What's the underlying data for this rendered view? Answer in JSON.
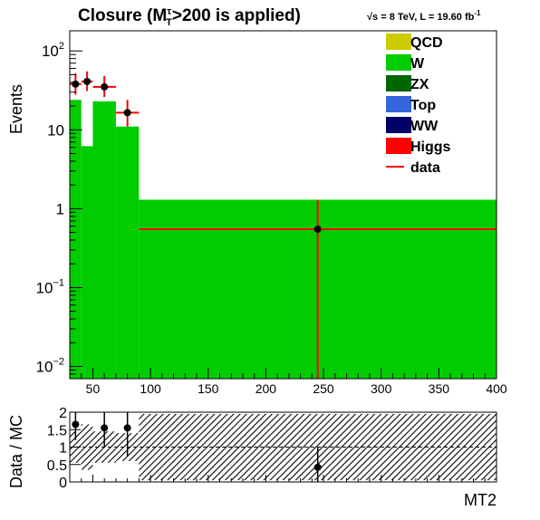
{
  "chart_data": {
    "type": "histogram",
    "title": {
      "prefix": "Closure (M",
      "sup": "τ",
      "sub": "T",
      "suffix": ">200 is applied)"
    },
    "energy_label": {
      "sqrt": "√s",
      "main": " = 8 TeV, L = 19.60 fb",
      "sup": "-1"
    },
    "ylabel": "Events",
    "xlabel": "MT2",
    "xlim": [
      30,
      400
    ],
    "ylim": [
      0.007,
      180
    ],
    "yscale": "log",
    "x_ticks": [
      "50",
      "100",
      "150",
      "200",
      "250",
      "300",
      "350",
      "400"
    ],
    "x_tick_values": [
      50,
      100,
      150,
      200,
      250,
      300,
      350,
      400
    ],
    "y_ticks": [
      {
        "value": 100,
        "base": "10",
        "exp": "2"
      },
      {
        "value": 10,
        "base": "10",
        "exp": ""
      },
      {
        "value": 1,
        "base": "1",
        "exp": ""
      },
      {
        "value": 0.1,
        "base": "10",
        "exp": "−1"
      },
      {
        "value": 0.01,
        "base": "10",
        "exp": "−2"
      }
    ],
    "bins": [
      {
        "x0": 30,
        "x1": 40
      },
      {
        "x0": 40,
        "x1": 50
      },
      {
        "x0": 50,
        "x1": 70
      },
      {
        "x0": 70,
        "x1": 90
      },
      {
        "x0": 90,
        "x1": 400
      }
    ],
    "stack": [
      {
        "name": "W",
        "color": "#00cc00",
        "values": [
          24,
          6.2,
          23,
          11,
          1.3
        ]
      }
    ],
    "data_points": [
      {
        "x": 35,
        "y": 38,
        "ylo": 28,
        "yhi": 52,
        "xlo": 30,
        "xhi": 40
      },
      {
        "x": 45,
        "y": 41,
        "ylo": 31,
        "yhi": 55,
        "xlo": 40,
        "xhi": 50
      },
      {
        "x": 60,
        "y": 35,
        "ylo": 26,
        "yhi": 48,
        "xlo": 50,
        "xhi": 70
      },
      {
        "x": 80,
        "y": 16.5,
        "ylo": 11,
        "yhi": 24,
        "xlo": 70,
        "xhi": 90
      },
      {
        "x": 245,
        "y": 0.55,
        "ylo": 0.007,
        "yhi": 1.3,
        "xlo": 90,
        "xhi": 400
      }
    ],
    "legend": {
      "placement": "top-right",
      "entries": [
        {
          "name": "QCD",
          "color": "#cccc00",
          "kind": "box"
        },
        {
          "name": "W",
          "color": "#00cc00",
          "kind": "box"
        },
        {
          "name": "ZX",
          "color": "#006600",
          "kind": "box"
        },
        {
          "name": "Top",
          "color": "#3366dd",
          "kind": "box"
        },
        {
          "name": "WW",
          "color": "#000066",
          "kind": "box"
        },
        {
          "name": "Higgs",
          "color": "#ff0000",
          "kind": "box"
        },
        {
          "name": "data",
          "color": "#ff0000",
          "kind": "line"
        }
      ]
    },
    "ratio": {
      "ylabel": "Data / MC",
      "ylim": [
        0,
        2
      ],
      "y_ticks": [
        "0",
        "0.5",
        "1",
        "1.5",
        "2"
      ],
      "y_tick_values": [
        0,
        0.5,
        1,
        1.5,
        2
      ],
      "points": [
        {
          "x": 35,
          "y": 1.65,
          "elo": 1.2,
          "ehi": 2.0
        },
        {
          "x": 60,
          "y": 1.55,
          "elo": 1.0,
          "ehi": 2.0
        },
        {
          "x": 80,
          "y": 1.55,
          "elo": 0.75,
          "ehi": 2.0
        },
        {
          "x": 245,
          "y": 0.42,
          "elo": 0.0,
          "ehi": 1.0
        }
      ],
      "band": [
        {
          "x0": 30,
          "x1": 40,
          "lo": 0.55,
          "hi": 1.45
        },
        {
          "x0": 40,
          "x1": 50,
          "lo": 0.35,
          "hi": 1.65
        },
        {
          "x0": 50,
          "x1": 70,
          "lo": 0.55,
          "hi": 1.45
        },
        {
          "x0": 70,
          "x1": 90,
          "lo": 0.6,
          "hi": 1.4
        },
        {
          "x0": 90,
          "x1": 400,
          "lo": 0.05,
          "hi": 1.95
        }
      ]
    },
    "colors": {
      "data": "#ff0000",
      "marker": "#000000"
    }
  }
}
